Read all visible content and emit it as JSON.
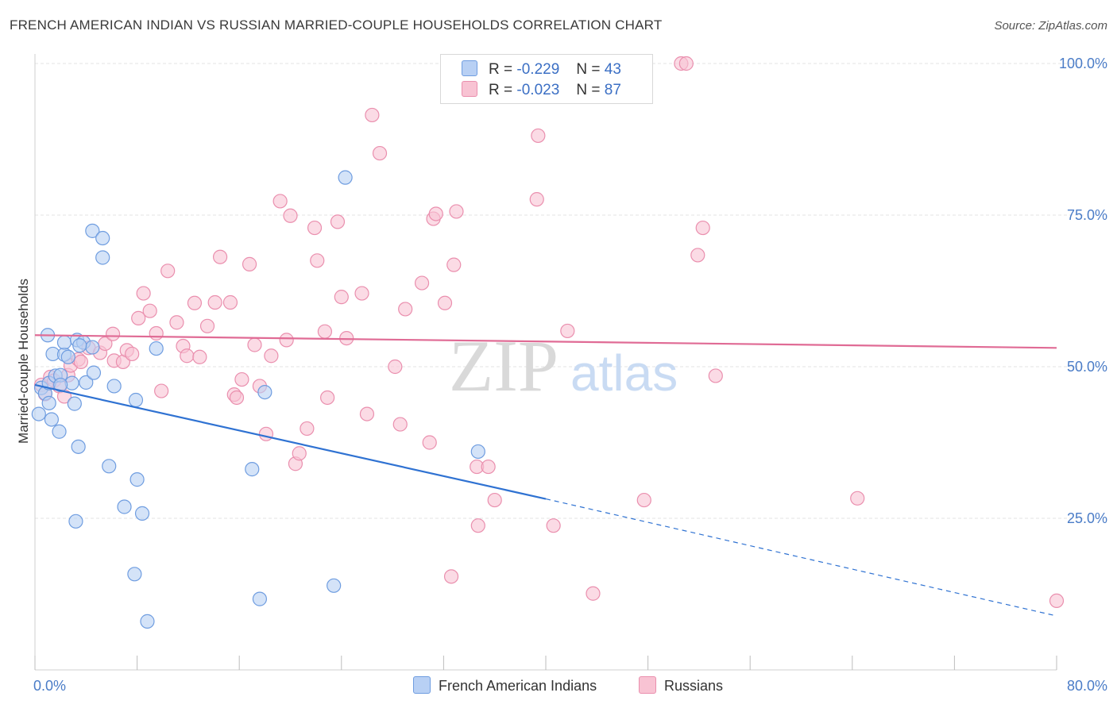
{
  "title": "FRENCH AMERICAN INDIAN VS RUSSIAN MARRIED-COUPLE HOUSEHOLDS CORRELATION CHART",
  "source": "Source: ZipAtlas.com",
  "colors": {
    "blue_fill": "#b8d0f4",
    "blue_stroke": "#6f9de0",
    "blue_line": "#2f72d2",
    "pink_fill": "#f8c3d3",
    "pink_stroke": "#ea8fae",
    "pink_line": "#e06b95",
    "tick_label": "#4a7cc7"
  },
  "legend_top": [
    {
      "r_label": "R =",
      "r_value": "-0.229",
      "n_label": "N =",
      "n_value": "43",
      "color": "blue"
    },
    {
      "r_label": "R =",
      "r_value": "-0.023",
      "n_label": "N =",
      "n_value": "87",
      "color": "pink"
    }
  ],
  "watermark": {
    "zip": "ZIP",
    "atlas": "atlas"
  },
  "chart_data": {
    "type": "scatter",
    "title": "FRENCH AMERICAN INDIAN VS RUSSIAN MARRIED-COUPLE HOUSEHOLDS CORRELATION CHART",
    "xlabel": "",
    "ylabel": "Married-couple Households",
    "xlim": [
      0,
      80
    ],
    "ylim": [
      0,
      100
    ],
    "x_tick_labels": [
      "0.0%",
      "80.0%"
    ],
    "y_tick_labels": [
      "25.0%",
      "50.0%",
      "75.0%",
      "100.0%"
    ],
    "y_ticks": [
      25,
      50,
      75,
      100
    ],
    "grid": true,
    "legend_position": "bottom",
    "series": [
      {
        "name": "French American Indians",
        "color": "blue",
        "trend": {
          "x0": 0,
          "y0": 47.0,
          "x1": 40.0,
          "y1": 28.2,
          "dash_to_x": 80,
          "dash_to_y": 8.9
        },
        "points": [
          [
            0.3,
            42.2
          ],
          [
            0.5,
            46.5
          ],
          [
            0.8,
            45.6
          ],
          [
            1.1,
            44.0
          ],
          [
            1.1,
            47.3
          ],
          [
            1.0,
            55.2
          ],
          [
            1.3,
            41.3
          ],
          [
            1.4,
            52.1
          ],
          [
            1.6,
            48.5
          ],
          [
            1.9,
            39.3
          ],
          [
            2.0,
            48.6
          ],
          [
            2.3,
            52.0
          ],
          [
            2.3,
            54.0
          ],
          [
            2.6,
            51.6
          ],
          [
            2.9,
            47.3
          ],
          [
            3.1,
            43.9
          ],
          [
            3.3,
            54.4
          ],
          [
            3.2,
            24.5
          ],
          [
            3.4,
            36.8
          ],
          [
            4.0,
            47.4
          ],
          [
            4.6,
            49.0
          ],
          [
            3.8,
            54.0
          ],
          [
            4.5,
            53.2
          ],
          [
            4.5,
            72.4
          ],
          [
            5.3,
            71.2
          ],
          [
            5.3,
            68.0
          ],
          [
            5.8,
            33.6
          ],
          [
            6.2,
            46.8
          ],
          [
            7.0,
            26.9
          ],
          [
            7.8,
            15.8
          ],
          [
            7.9,
            44.5
          ],
          [
            8.0,
            31.4
          ],
          [
            8.4,
            25.8
          ],
          [
            8.8,
            8.0
          ],
          [
            9.5,
            53.0
          ],
          [
            17.0,
            33.1
          ],
          [
            17.6,
            11.7
          ],
          [
            18.0,
            45.8
          ],
          [
            23.4,
            13.9
          ],
          [
            24.3,
            81.2
          ],
          [
            34.7,
            36.0
          ],
          [
            3.5,
            53.5
          ],
          [
            2.0,
            47.0
          ]
        ]
      },
      {
        "name": "Russians",
        "color": "pink",
        "trend": {
          "x0": 0,
          "y0": 55.2,
          "x1": 80,
          "y1": 53.1
        },
        "points": [
          [
            0.5,
            47.0
          ],
          [
            0.8,
            45.5
          ],
          [
            1.2,
            48.3
          ],
          [
            1.5,
            47.7
          ],
          [
            1.9,
            46.8
          ],
          [
            2.3,
            45.1
          ],
          [
            2.6,
            48.6
          ],
          [
            2.8,
            50.2
          ],
          [
            3.4,
            51.2
          ],
          [
            3.6,
            50.8
          ],
          [
            4.2,
            53.1
          ],
          [
            5.1,
            52.3
          ],
          [
            5.5,
            53.8
          ],
          [
            6.1,
            55.4
          ],
          [
            6.2,
            51.0
          ],
          [
            6.9,
            50.8
          ],
          [
            7.2,
            52.7
          ],
          [
            7.6,
            52.1
          ],
          [
            8.1,
            58.0
          ],
          [
            8.5,
            62.1
          ],
          [
            9.0,
            59.2
          ],
          [
            9.5,
            55.5
          ],
          [
            9.9,
            46.0
          ],
          [
            10.4,
            65.8
          ],
          [
            11.1,
            57.3
          ],
          [
            11.6,
            53.4
          ],
          [
            11.9,
            51.8
          ],
          [
            12.5,
            60.5
          ],
          [
            12.9,
            51.6
          ],
          [
            13.5,
            56.7
          ],
          [
            14.1,
            60.6
          ],
          [
            14.5,
            68.1
          ],
          [
            15.3,
            60.6
          ],
          [
            15.6,
            45.4
          ],
          [
            15.8,
            44.9
          ],
          [
            16.2,
            47.9
          ],
          [
            16.8,
            66.9
          ],
          [
            17.2,
            53.6
          ],
          [
            17.6,
            46.8
          ],
          [
            18.1,
            38.9
          ],
          [
            18.5,
            51.8
          ],
          [
            19.2,
            77.3
          ],
          [
            19.7,
            54.4
          ],
          [
            20.0,
            74.9
          ],
          [
            20.4,
            34.0
          ],
          [
            20.7,
            35.7
          ],
          [
            21.3,
            39.8
          ],
          [
            21.9,
            72.9
          ],
          [
            22.1,
            67.5
          ],
          [
            22.7,
            55.8
          ],
          [
            22.9,
            44.9
          ],
          [
            23.7,
            73.9
          ],
          [
            24.0,
            61.5
          ],
          [
            24.4,
            54.7
          ],
          [
            25.6,
            62.1
          ],
          [
            26.0,
            42.2
          ],
          [
            26.4,
            91.5
          ],
          [
            27.0,
            85.2
          ],
          [
            28.2,
            50.0
          ],
          [
            28.6,
            40.5
          ],
          [
            29.0,
            59.5
          ],
          [
            30.3,
            63.8
          ],
          [
            30.9,
            37.5
          ],
          [
            31.2,
            74.4
          ],
          [
            31.4,
            75.2
          ],
          [
            32.1,
            60.5
          ],
          [
            32.6,
            15.4
          ],
          [
            32.8,
            66.8
          ],
          [
            33.0,
            75.6
          ],
          [
            34.6,
            33.5
          ],
          [
            34.7,
            23.8
          ],
          [
            35.5,
            33.5
          ],
          [
            36.0,
            28.0
          ],
          [
            37.4,
            100.0
          ],
          [
            39.3,
            77.6
          ],
          [
            39.4,
            88.1
          ],
          [
            40.6,
            23.8
          ],
          [
            41.7,
            55.9
          ],
          [
            43.7,
            12.6
          ],
          [
            47.7,
            28.0
          ],
          [
            50.6,
            100.0
          ],
          [
            51.0,
            100.0
          ],
          [
            51.9,
            68.4
          ],
          [
            52.3,
            72.9
          ],
          [
            53.3,
            48.5
          ],
          [
            64.4,
            28.3
          ],
          [
            80.0,
            11.4
          ]
        ]
      }
    ]
  }
}
